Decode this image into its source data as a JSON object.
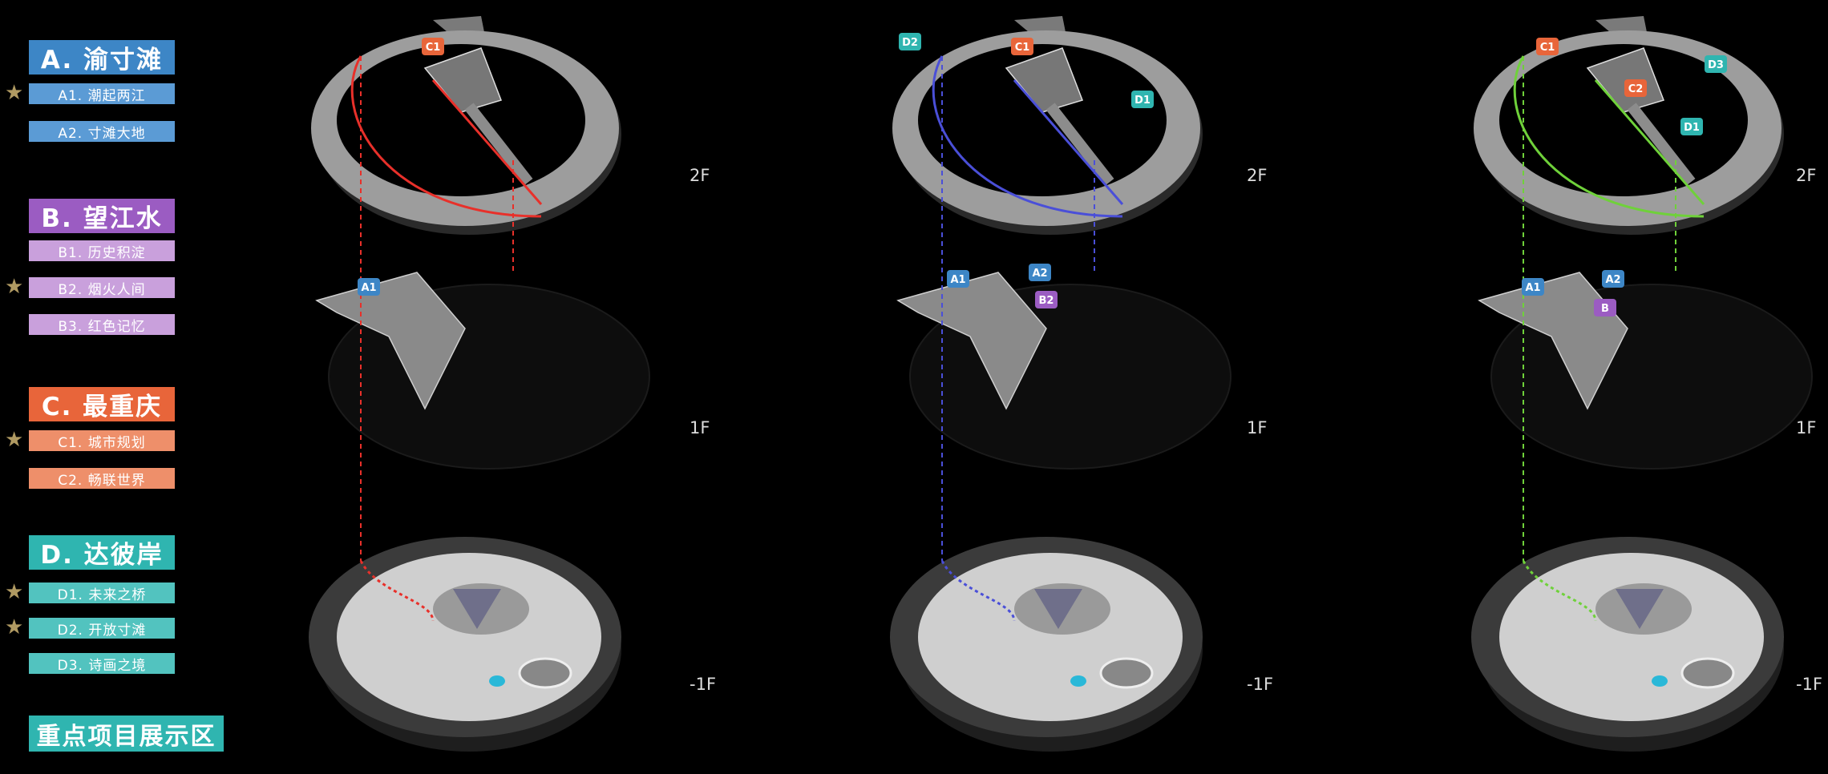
{
  "legend": {
    "categories": [
      {
        "label": "A. 渝寸滩",
        "color": "#3d86c6",
        "items": [
          {
            "label": "A1. 潮起两江",
            "color": "#5b9bd5",
            "starred": true
          },
          {
            "label": "A2. 寸滩大地",
            "color": "#5b9bd5",
            "starred": false
          }
        ]
      },
      {
        "label": "B. 望江水",
        "color": "#9b5cc2",
        "items": [
          {
            "label": "B1. 历史积淀",
            "color": "#c9a0dc",
            "starred": false
          },
          {
            "label": "B2. 烟火人间",
            "color": "#c9a0dc",
            "starred": true
          },
          {
            "label": "B3. 红色记忆",
            "color": "#c9a0dc",
            "starred": false
          }
        ]
      },
      {
        "label": "C. 最重庆",
        "color": "#e8653a",
        "items": [
          {
            "label": "C1. 城市规划",
            "color": "#ee8f6a",
            "starred": true
          },
          {
            "label": "C2. 畅联世界",
            "color": "#ee8f6a",
            "starred": false
          }
        ]
      },
      {
        "label": "D. 达彼岸",
        "color": "#2fb5b0",
        "items": [
          {
            "label": "D1. 未来之桥",
            "color": "#52c3bf",
            "starred": true
          },
          {
            "label": "D2. 开放寸滩",
            "color": "#52c3bf",
            "starred": true
          },
          {
            "label": "D3. 诗画之境",
            "color": "#52c3bf",
            "starred": false
          }
        ]
      }
    ],
    "key_area_label": "重点项目展示区"
  },
  "floors": {
    "f2": "2F",
    "f1": "1F",
    "fb1": "-1F"
  },
  "routes": [
    {
      "color": "#e8302a",
      "badges": {
        "top": [
          {
            "label": "C1",
            "color": "#e8653a"
          }
        ],
        "mid": [
          {
            "label": "A1",
            "color": "#3d86c6"
          }
        ]
      }
    },
    {
      "color": "#4a4fd8",
      "badges": {
        "top": [
          {
            "label": "C1",
            "color": "#e8653a"
          },
          {
            "label": "D2",
            "color": "#2fb5b0"
          },
          {
            "label": "D1",
            "color": "#2fb5b0"
          }
        ],
        "mid": [
          {
            "label": "A1",
            "color": "#3d86c6"
          },
          {
            "label": "A2",
            "color": "#3d86c6"
          },
          {
            "label": "B2",
            "color": "#9b5cc2"
          }
        ]
      }
    },
    {
      "color": "#6fd13a",
      "badges": {
        "top": [
          {
            "label": "C1",
            "color": "#e8653a"
          },
          {
            "label": "D3",
            "color": "#2fb5b0"
          },
          {
            "label": "C2",
            "color": "#e8653a"
          },
          {
            "label": "D1",
            "color": "#2fb5b0"
          }
        ],
        "mid": [
          {
            "label": "A1",
            "color": "#3d86c6"
          },
          {
            "label": "A2",
            "color": "#3d86c6"
          },
          {
            "label": "B",
            "color": "#9b5cc2"
          }
        ]
      }
    }
  ]
}
